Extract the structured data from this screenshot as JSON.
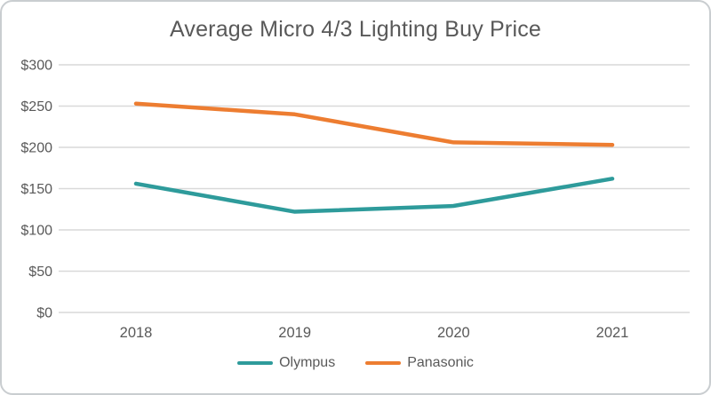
{
  "chart_data": {
    "type": "line",
    "title": "Average Micro 4/3 Lighting Buy Price",
    "categories": [
      "2018",
      "2019",
      "2020",
      "2021"
    ],
    "series": [
      {
        "name": "Olympus",
        "color": "#2E9B9B",
        "values": [
          156,
          122,
          129,
          162
        ]
      },
      {
        "name": "Panasonic",
        "color": "#ED7D31",
        "values": [
          253,
          240,
          206,
          203
        ]
      }
    ],
    "xlabel": "",
    "ylabel": "",
    "ylim": [
      0,
      300
    ],
    "ytick_step": 50,
    "ytick_labels": [
      "$0",
      "$50",
      "$100",
      "$150",
      "$200",
      "$250",
      "$300"
    ],
    "grid": true,
    "grid_color": "#D9D9D9",
    "text_color": "#595959",
    "legend_position": "bottom"
  }
}
